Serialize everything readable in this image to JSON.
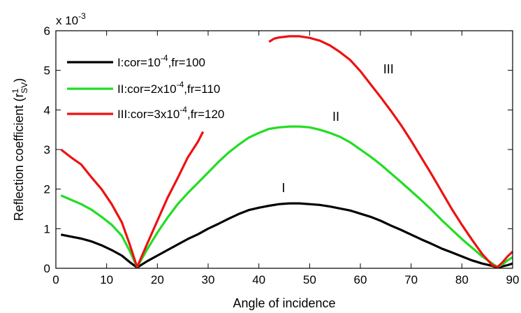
{
  "chart_data": {
    "type": "line",
    "xlabel": "Angle of incidence",
    "ylabel": {
      "prefix": "Reflection coefficient (",
      "main": "r",
      "sup": "1",
      "sub": "SV",
      "suffix": ")"
    },
    "y_multiplier": {
      "base": "x 10",
      "exp": "-3"
    },
    "xlim": [
      0,
      90
    ],
    "ylim": [
      0,
      6
    ],
    "xticks": [
      0,
      10,
      20,
      30,
      40,
      50,
      60,
      70,
      80,
      90
    ],
    "yticks": [
      0,
      1,
      2,
      3,
      4,
      5,
      6
    ],
    "grid": false,
    "legend_position": "top-left",
    "series": [
      {
        "name": "I:cor=10^-4,fr=100",
        "legend": {
          "a": "I:cor=10",
          "sup": "-4",
          "b": ",fr=100"
        },
        "curve_label": "I",
        "curve_label_at": [
          44.5,
          1.92
        ],
        "color": "#000000",
        "segments": [
          [
            [
              1,
              0.85
            ],
            [
              3,
              0.8
            ],
            [
              5,
              0.75
            ],
            [
              7,
              0.68
            ],
            [
              9,
              0.58
            ],
            [
              11,
              0.46
            ],
            [
              13,
              0.32
            ],
            [
              14.5,
              0.16
            ],
            [
              16,
              0.02
            ],
            [
              18,
              0.18
            ],
            [
              20,
              0.32
            ],
            [
              22,
              0.46
            ],
            [
              24,
              0.6
            ],
            [
              26,
              0.74
            ],
            [
              28,
              0.86
            ],
            [
              30,
              1.0
            ],
            [
              32,
              1.12
            ],
            [
              34,
              1.25
            ],
            [
              36,
              1.37
            ],
            [
              38,
              1.47
            ],
            [
              40,
              1.53
            ],
            [
              42,
              1.58
            ],
            [
              44,
              1.62
            ],
            [
              46,
              1.64
            ],
            [
              48,
              1.64
            ],
            [
              50,
              1.62
            ],
            [
              52,
              1.6
            ],
            [
              54,
              1.56
            ],
            [
              56,
              1.51
            ],
            [
              58,
              1.46
            ],
            [
              60,
              1.38
            ],
            [
              62,
              1.3
            ],
            [
              64,
              1.2
            ],
            [
              66,
              1.08
            ],
            [
              68,
              0.97
            ],
            [
              70,
              0.85
            ],
            [
              72,
              0.73
            ],
            [
              74,
              0.62
            ],
            [
              76,
              0.5
            ],
            [
              78,
              0.4
            ],
            [
              80,
              0.3
            ],
            [
              82,
              0.2
            ],
            [
              84,
              0.12
            ],
            [
              86,
              0.06
            ],
            [
              87,
              0.02
            ],
            [
              88,
              0.05
            ],
            [
              89,
              0.08
            ],
            [
              90,
              0.12
            ]
          ]
        ]
      },
      {
        "name": "II:cor=2x10^-4,fr=110",
        "legend": {
          "a": "II:cor=2x10",
          "sup": "-4",
          "b": ",fr=110"
        },
        "curve_label": "II",
        "curve_label_at": [
          54.5,
          3.72
        ],
        "color": "#22dd22",
        "segments": [
          [
            [
              1,
              1.84
            ],
            [
              3,
              1.73
            ],
            [
              5,
              1.62
            ],
            [
              7,
              1.48
            ],
            [
              9,
              1.3
            ],
            [
              11,
              1.1
            ],
            [
              13,
              0.82
            ],
            [
              14.5,
              0.45
            ],
            [
              16,
              0.03
            ],
            [
              18,
              0.48
            ],
            [
              20,
              0.9
            ],
            [
              22,
              1.28
            ],
            [
              24,
              1.62
            ],
            [
              26,
              1.9
            ],
            [
              28,
              2.16
            ],
            [
              30,
              2.42
            ],
            [
              32,
              2.68
            ],
            [
              34,
              2.92
            ],
            [
              36,
              3.12
            ],
            [
              38,
              3.3
            ],
            [
              40,
              3.42
            ],
            [
              42,
              3.52
            ],
            [
              44,
              3.56
            ],
            [
              46,
              3.58
            ],
            [
              48,
              3.58
            ],
            [
              50,
              3.56
            ],
            [
              52,
              3.5
            ],
            [
              54,
              3.42
            ],
            [
              56,
              3.32
            ],
            [
              58,
              3.18
            ],
            [
              60,
              3.0
            ],
            [
              62,
              2.82
            ],
            [
              64,
              2.62
            ],
            [
              66,
              2.4
            ],
            [
              68,
              2.18
            ],
            [
              70,
              1.95
            ],
            [
              72,
              1.72
            ],
            [
              74,
              1.48
            ],
            [
              76,
              1.22
            ],
            [
              78,
              0.98
            ],
            [
              80,
              0.74
            ],
            [
              82,
              0.52
            ],
            [
              84,
              0.3
            ],
            [
              86,
              0.12
            ],
            [
              87,
              0.03
            ],
            [
              88,
              0.1
            ],
            [
              89,
              0.2
            ],
            [
              90,
              0.28
            ]
          ]
        ]
      },
      {
        "name": "III:cor=3x10^-4,fr=120",
        "legend": {
          "a": "III:cor=3x10",
          "sup": "-4",
          "b": ",fr=120"
        },
        "curve_label": "III",
        "curve_label_at": [
          64.5,
          4.92
        ],
        "color": "#ee1111",
        "segments": [
          [
            [
              1,
              3.0
            ],
            [
              3,
              2.8
            ],
            [
              5,
              2.62
            ],
            [
              7,
              2.3
            ],
            [
              9,
              2.0
            ],
            [
              11,
              1.62
            ],
            [
              13,
              1.16
            ],
            [
              14.5,
              0.62
            ],
            [
              16,
              0.03
            ],
            [
              18,
              0.62
            ],
            [
              20,
              1.2
            ],
            [
              22,
              1.78
            ],
            [
              24,
              2.28
            ],
            [
              26,
              2.8
            ],
            [
              28,
              3.2
            ],
            [
              29,
              3.45
            ]
          ],
          [
            [
              42,
              5.72
            ],
            [
              43,
              5.8
            ],
            [
              44,
              5.83
            ],
            [
              46,
              5.86
            ],
            [
              48,
              5.86
            ],
            [
              50,
              5.82
            ],
            [
              52,
              5.75
            ],
            [
              54,
              5.63
            ],
            [
              56,
              5.46
            ],
            [
              58,
              5.26
            ],
            [
              60,
              4.98
            ],
            [
              62,
              4.65
            ],
            [
              64,
              4.32
            ],
            [
              66,
              3.98
            ],
            [
              68,
              3.62
            ],
            [
              70,
              3.22
            ],
            [
              72,
              2.8
            ],
            [
              74,
              2.38
            ],
            [
              76,
              1.94
            ],
            [
              78,
              1.5
            ],
            [
              80,
              1.1
            ],
            [
              82,
              0.72
            ],
            [
              84,
              0.36
            ],
            [
              86,
              0.08
            ],
            [
              87,
              0.03
            ],
            [
              88,
              0.15
            ],
            [
              89,
              0.3
            ],
            [
              90,
              0.42
            ]
          ]
        ]
      }
    ]
  }
}
